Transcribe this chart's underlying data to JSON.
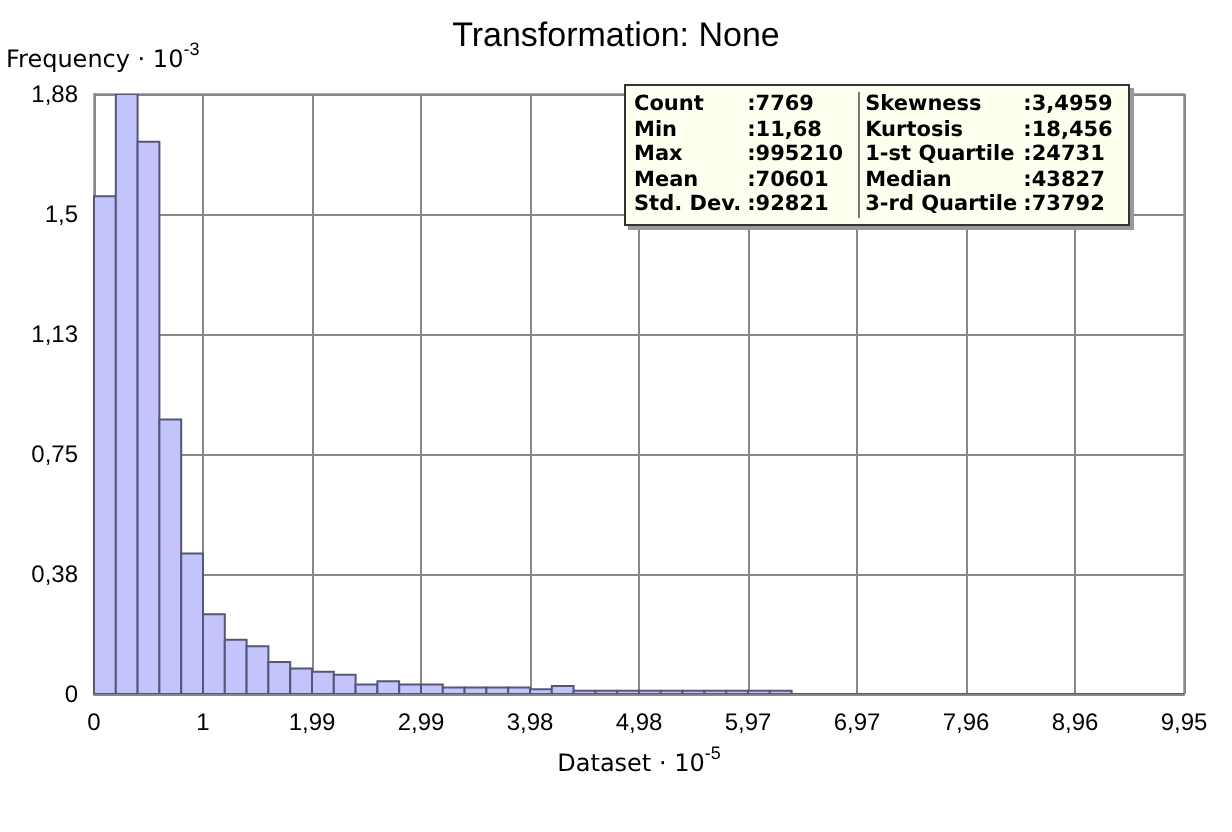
{
  "chart_data": {
    "type": "histogram",
    "title": "Transformation: None",
    "xlabel": "Dataset · 10$^{-5}$",
    "ylabel": "Frequency · 10$^{-3}$",
    "bins": [
      0,
      0.199,
      0.398,
      0.597,
      0.796,
      0.995,
      1.194,
      1.393,
      1.592,
      1.791,
      1.99,
      2.189,
      2.388,
      2.587,
      2.786,
      2.985,
      3.184,
      3.383,
      3.582,
      3.781,
      3.98,
      4.179,
      4.378,
      4.577,
      4.776,
      4.975,
      5.174,
      5.373,
      5.572,
      5.771,
      5.97,
      6.169,
      6.368,
      6.567,
      6.766,
      6.965,
      7.164,
      7.363,
      7.562,
      7.761,
      7.96,
      8.159,
      8.358,
      8.557,
      8.756,
      8.955,
      9.154,
      9.353,
      9.552,
      9.751,
      9.95
    ],
    "values": [
      1.56,
      1.88,
      1.73,
      0.86,
      0.44,
      0.25,
      0.17,
      0.15,
      0.1,
      0.08,
      0.07,
      0.06,
      0.03,
      0.04,
      0.03,
      0.03,
      0.02,
      0.02,
      0.02,
      0.02,
      0.015,
      0.025,
      0.01,
      0.01,
      0.01,
      0.01,
      0.01,
      0.01,
      0.01,
      0.01,
      0.01,
      0.01,
      0,
      0,
      0,
      0,
      0,
      0,
      0,
      0,
      0,
      0,
      0,
      0,
      0,
      0,
      0,
      0,
      0,
      0
    ],
    "color": "#c4c4fc",
    "xlim": [
      0,
      9.95
    ],
    "xticks": [
      0,
      {
        "value": 0.995,
        "label": "1"
      },
      {
        "value": 1.99,
        "label": "1,99"
      },
      {
        "value": 2.985,
        "label": "2,99"
      },
      {
        "value": 3.98,
        "label": "3,98"
      },
      {
        "value": 4.975,
        "label": "4,98"
      },
      {
        "value": 5.97,
        "label": "5,97"
      },
      {
        "value": 6.965,
        "label": "6,97"
      },
      {
        "value": 7.96,
        "label": "7,96"
      },
      {
        "value": 8.955,
        "label": "8,96"
      },
      {
        "value": 9.95,
        "label": "9,95"
      }
    ],
    "ylim": [
      0,
      1.88
    ],
    "yticks": [
      0,
      {
        "value": 0.376,
        "label": "0,38"
      },
      {
        "value": 0.752,
        "label": "0,75"
      },
      {
        "value": 1.128,
        "label": "1,13"
      },
      {
        "value": 1.504,
        "label": "1,5"
      },
      {
        "value": 1.88,
        "label": "1,88"
      }
    ],
    "grid": true,
    "annotations": [
      "Count :7769",
      "Skewness :3,4959",
      "Min :11,68",
      "Kurtosis :18,456",
      "Max :995210",
      "1-st Quartile :24731",
      "Mean :70601",
      "Median :43827",
      "Std. Dev. :92821",
      "3-rd Quartile :73792"
    ]
  }
}
